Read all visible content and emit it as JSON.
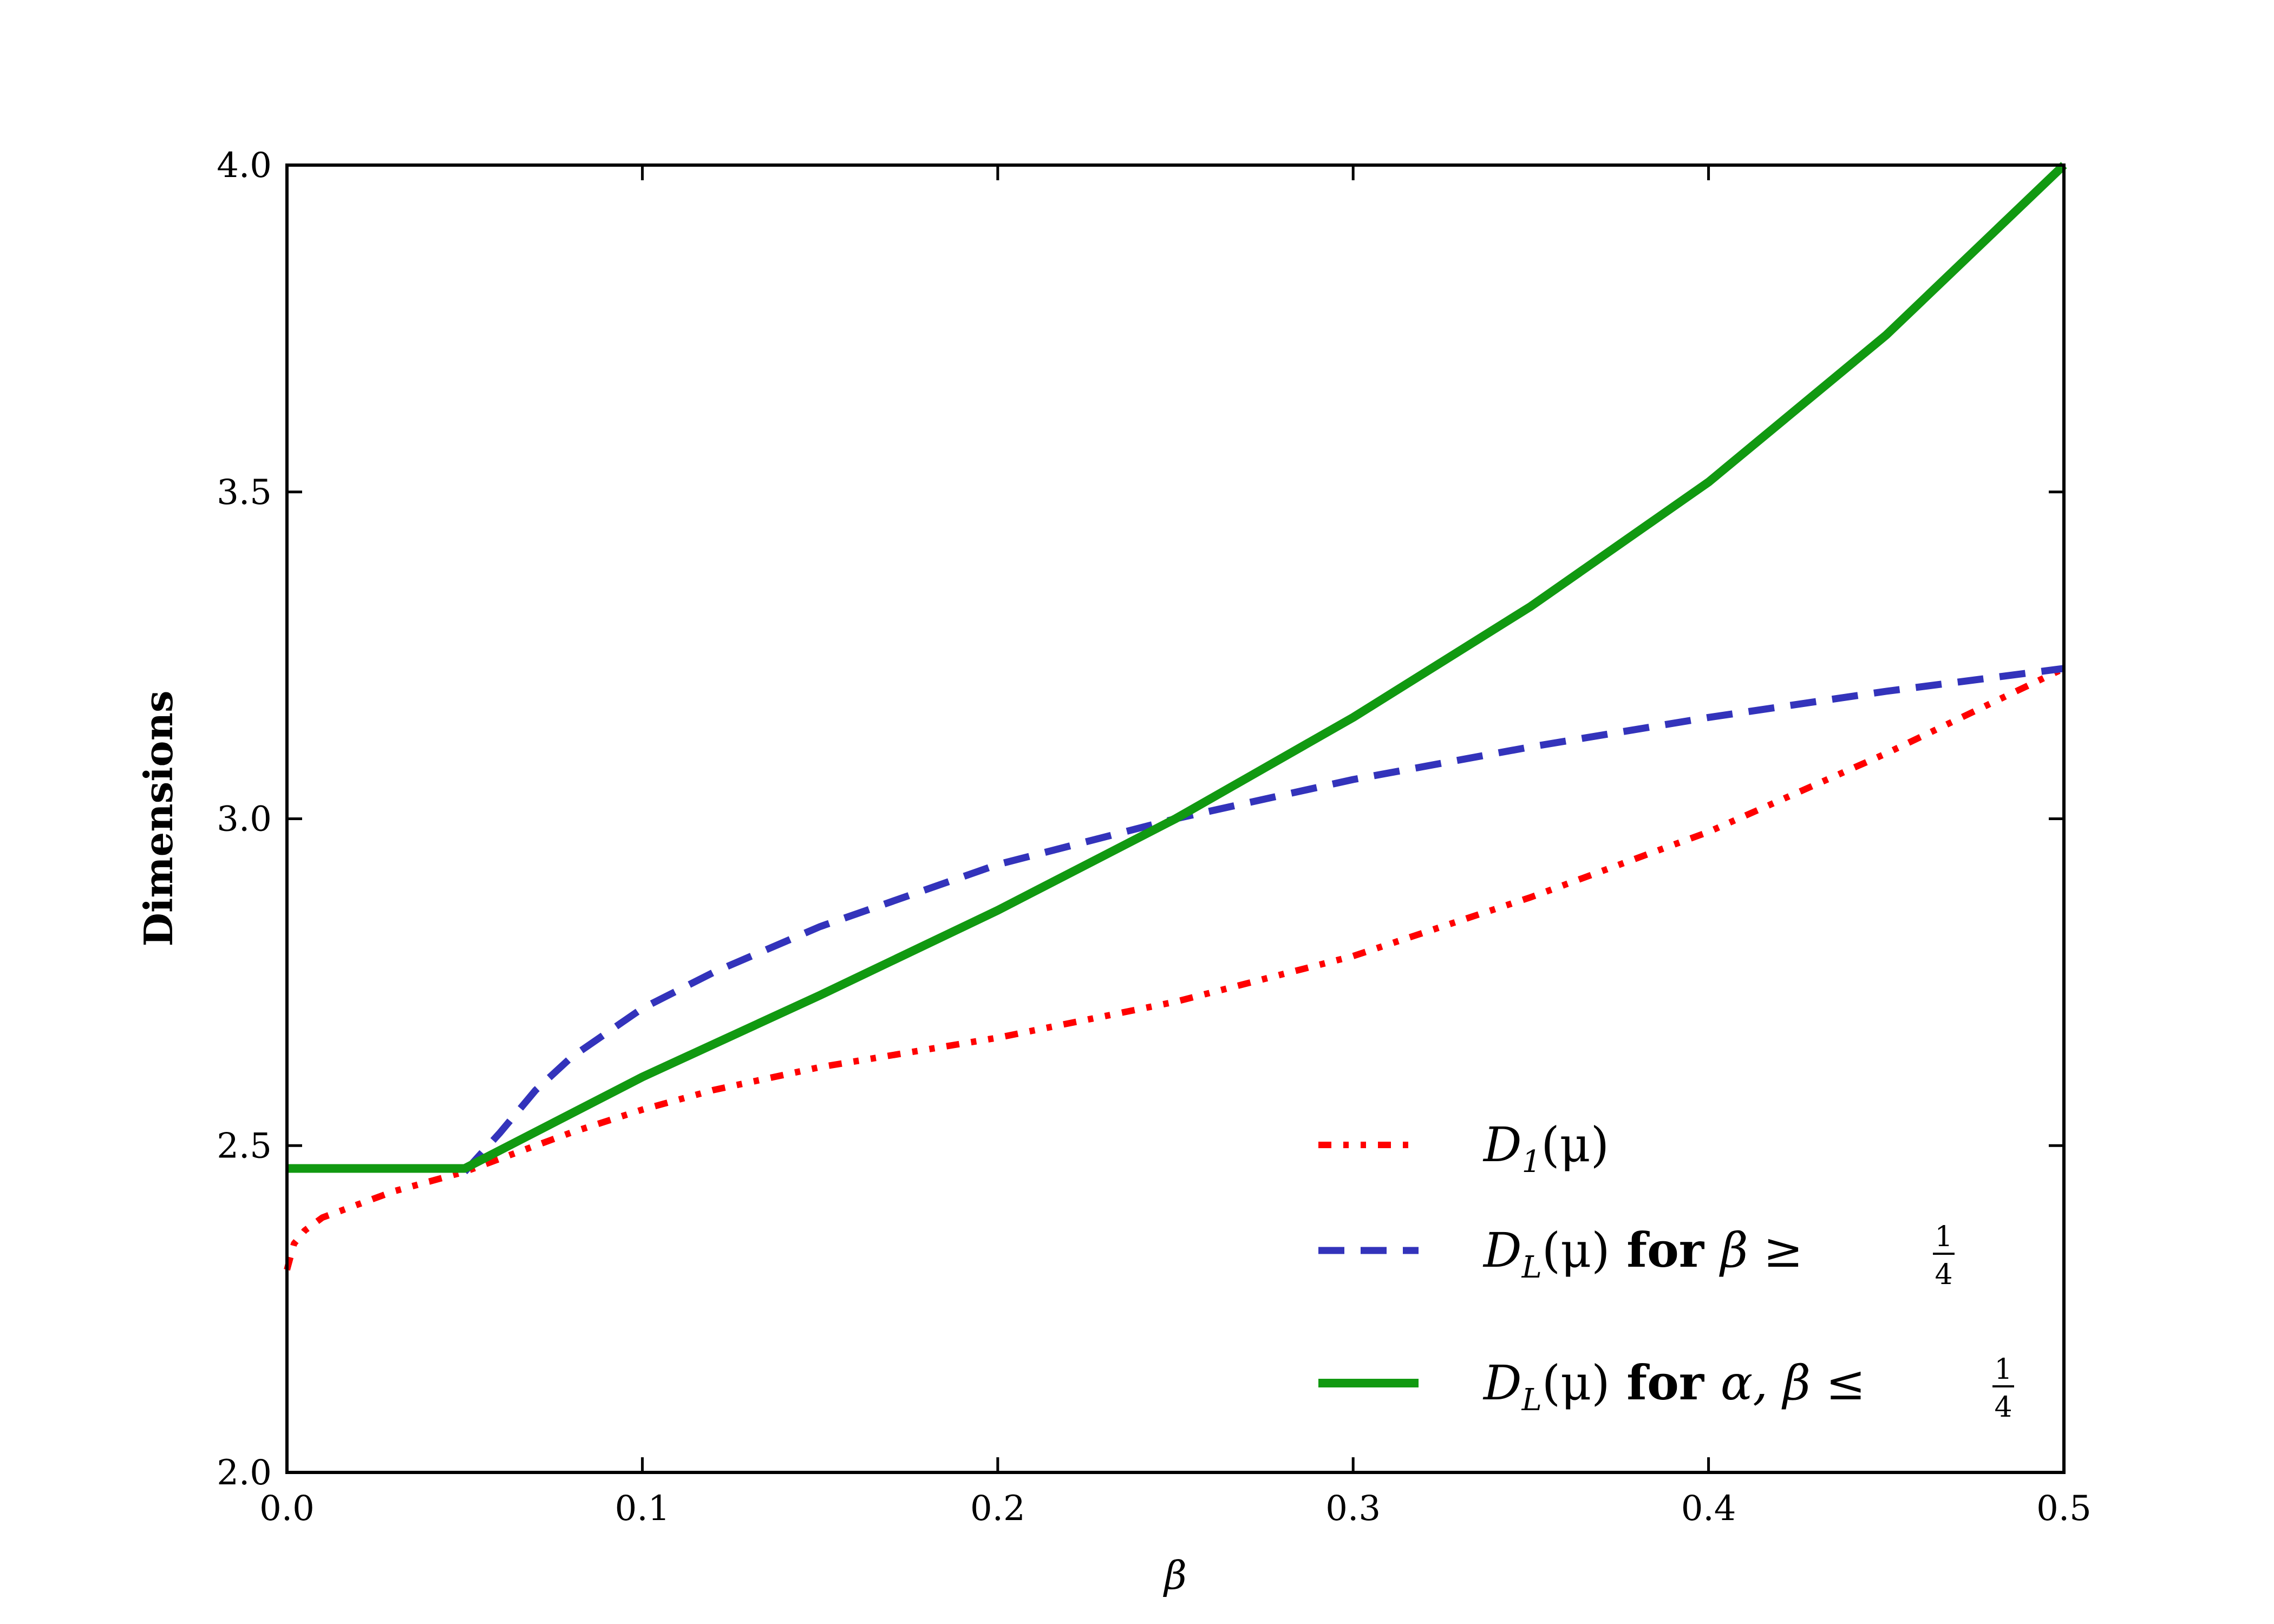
{
  "chart_data": {
    "type": "line",
    "xlabel": "β",
    "ylabel": "Dimensions",
    "xlim": [
      0.0,
      0.5
    ],
    "ylim": [
      2.0,
      4.0
    ],
    "xticks": [
      "0.0",
      "0.1",
      "0.2",
      "0.3",
      "0.4",
      "0.5"
    ],
    "yticks": [
      "2.0",
      "2.5",
      "3.0",
      "3.5",
      "4.0"
    ],
    "grid": false,
    "legend_position": "lower-right",
    "series": [
      {
        "name": "D1(μ)",
        "legend": {
          "main": "D",
          "sub": "1",
          "rest": "(μ)",
          "bold": "",
          "cond": "",
          "frac_num": "",
          "frac_den": ""
        },
        "color": "#ff0000",
        "style": "dash-dot-dot",
        "x": [
          0.0,
          0.002,
          0.005,
          0.01,
          0.02,
          0.03,
          0.04,
          0.05,
          0.06,
          0.08,
          0.1,
          0.12,
          0.15,
          0.2,
          0.25,
          0.3,
          0.35,
          0.4,
          0.45,
          0.5
        ],
        "y": [
          2.31,
          2.35,
          2.37,
          2.39,
          2.41,
          2.43,
          2.445,
          2.46,
          2.48,
          2.52,
          2.555,
          2.585,
          2.62,
          2.665,
          2.72,
          2.79,
          2.88,
          2.98,
          3.1,
          3.23
        ]
      },
      {
        "name": "DL(μ) for β ≥ 1/4",
        "legend": {
          "main": "D",
          "sub": "L",
          "rest": "(μ)",
          "bold": " for ",
          "cond": "β ≥",
          "frac_num": "1",
          "frac_den": "4"
        },
        "color": "#3333bb",
        "style": "dashed",
        "x": [
          0.05,
          0.06,
          0.07,
          0.08,
          0.1,
          0.12,
          0.15,
          0.2,
          0.25,
          0.3,
          0.35,
          0.4,
          0.45,
          0.5
        ],
        "y": [
          2.46,
          2.52,
          2.585,
          2.635,
          2.71,
          2.765,
          2.835,
          2.93,
          3.0,
          3.06,
          3.11,
          3.155,
          3.195,
          3.23
        ]
      },
      {
        "name": "DL(μ) for α, β ≤ 1/4",
        "legend": {
          "main": "D",
          "sub": "L",
          "rest": "(μ)",
          "bold": " for ",
          "cond": "α, β ≤",
          "frac_num": "1",
          "frac_den": "4"
        },
        "color": "#119911",
        "style": "solid",
        "x": [
          0.0,
          0.05,
          0.1,
          0.15,
          0.2,
          0.25,
          0.3,
          0.35,
          0.4,
          0.45,
          0.5
        ],
        "y": [
          2.465,
          2.465,
          2.605,
          2.73,
          2.86,
          3.0,
          3.155,
          3.325,
          3.515,
          3.74,
          4.0
        ]
      }
    ]
  }
}
